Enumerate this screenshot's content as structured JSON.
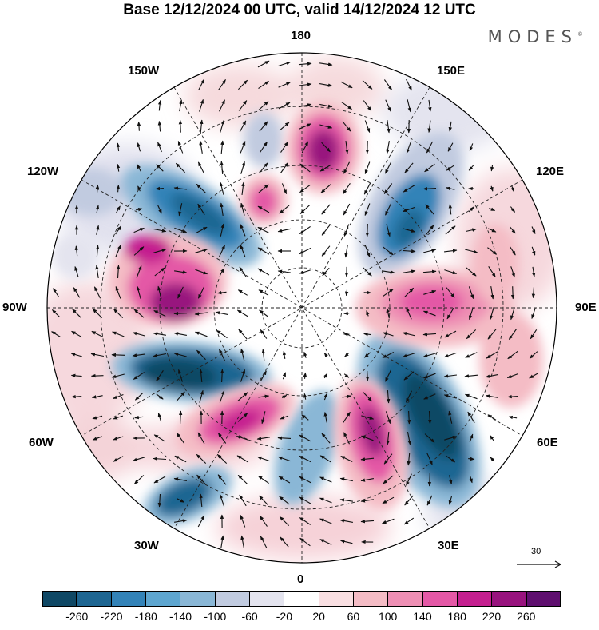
{
  "title": "Base 12/12/2024 00 UTC, valid 14/12/2024 12 UTC",
  "brand": "MODES",
  "brand_mark": "©",
  "map": {
    "projection": "north-polar-stereographic",
    "longitude_labels": {
      "top": "180",
      "top_left": "150W",
      "top_right": "150E",
      "upper_left": "120W",
      "upper_right": "120E",
      "left": "90W",
      "right": "90E",
      "lower_left": "60W",
      "lower_right": "60E",
      "bottom_left": "30W",
      "bottom_right": "30E",
      "bottom": "0"
    },
    "reference_vector": "30",
    "anomaly_centers": [
      {
        "name": "low-atlantic",
        "sign": "negative",
        "intensity": "strong"
      },
      {
        "name": "low-north-america-north",
        "sign": "negative",
        "intensity": "strong"
      },
      {
        "name": "low-siberia",
        "sign": "negative",
        "intensity": "strong"
      },
      {
        "name": "high-pacific",
        "sign": "positive",
        "intensity": "strong"
      },
      {
        "name": "high-canada",
        "sign": "positive",
        "intensity": "strong"
      },
      {
        "name": "high-scandinavia",
        "sign": "positive",
        "intensity": "strong"
      },
      {
        "name": "high-north-asia",
        "sign": "positive",
        "intensity": "moderate"
      }
    ]
  },
  "colorbar": {
    "colors": [
      "#0f4865",
      "#1e6692",
      "#3383b8",
      "#5ea6d0",
      "#8ab7d6",
      "#c1cbe0",
      "#e4e4ef",
      "#ffffff",
      "#f9dfe2",
      "#f4bcc5",
      "#ee8fb4",
      "#e458a6",
      "#c41f8f",
      "#98137e",
      "#5f0f6f"
    ],
    "ticks": [
      "-260",
      "-220",
      "-180",
      "-140",
      "-100",
      "-60",
      "-20",
      "20",
      "60",
      "100",
      "140",
      "180",
      "220",
      "260"
    ]
  }
}
